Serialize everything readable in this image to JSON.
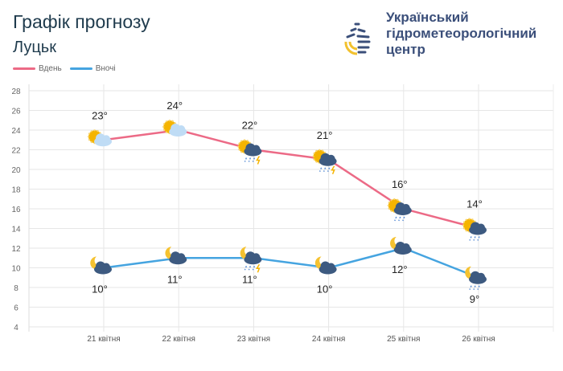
{
  "header": {
    "title": "Графік прогнозу",
    "city": "Луцьк",
    "org_line1": "Український",
    "org_line2": "гідрометеорологічний",
    "org_line3": "центр"
  },
  "colors": {
    "day": "#ec6a86",
    "night": "#45a4e0",
    "grid": "#e6e6e6"
  },
  "chart_data": {
    "type": "line",
    "categories": [
      "21 квітня",
      "22 квітня",
      "23 квітня",
      "24 квітня",
      "25 квітня",
      "26 квітня"
    ],
    "series": [
      {
        "name": "Вдень",
        "values": [
          23,
          24,
          22,
          21,
          16,
          14
        ],
        "labels": [
          "23°",
          "24°",
          "22°",
          "21°",
          "16°",
          "14°"
        ],
        "icons": [
          "sun-cloud",
          "sun-cloud",
          "sun-storm-rain",
          "sun-storm-rain",
          "sun-rain",
          "sun-rain"
        ]
      },
      {
        "name": "Вночі",
        "values": [
          10,
          11,
          11,
          10,
          12,
          9
        ],
        "labels": [
          "10°",
          "11°",
          "11°",
          "10°",
          "12°",
          "9°"
        ],
        "icons": [
          "moon-cloud",
          "moon-cloud",
          "moon-storm-rain",
          "moon-cloud",
          "moon-cloud",
          "moon-rain"
        ]
      }
    ],
    "yticks": [
      4,
      6,
      8,
      10,
      12,
      14,
      16,
      18,
      20,
      22,
      24,
      26,
      28
    ],
    "ylim": [
      4,
      28
    ],
    "grid": true,
    "legend": "top-left"
  }
}
